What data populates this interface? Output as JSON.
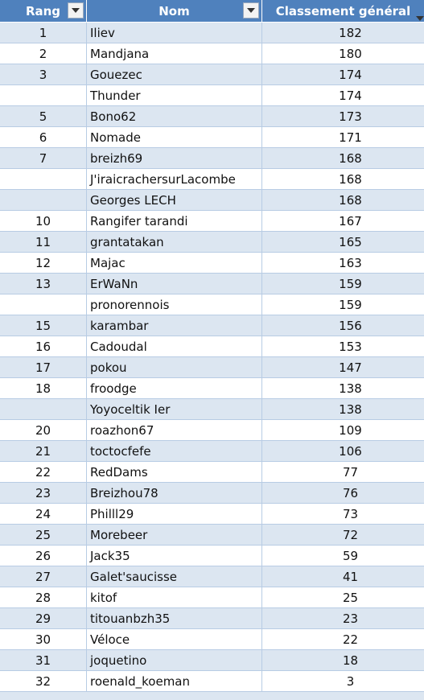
{
  "headers": {
    "rank": "Rang",
    "name": "Nom",
    "score": "Classement général"
  },
  "rows": [
    {
      "rank": "1",
      "name": "Iliev",
      "score": "182"
    },
    {
      "rank": "2",
      "name": "Mandjana",
      "score": "180"
    },
    {
      "rank": "3",
      "name": "Gouezec",
      "score": "174"
    },
    {
      "rank": "",
      "name": "Thunder",
      "score": "174"
    },
    {
      "rank": "5",
      "name": "Bono62",
      "score": "173"
    },
    {
      "rank": "6",
      "name": "Nomade",
      "score": "171"
    },
    {
      "rank": "7",
      "name": "breizh69",
      "score": "168"
    },
    {
      "rank": "",
      "name": "J'iraicrachersurLacombe",
      "score": "168"
    },
    {
      "rank": "",
      "name": "Georges LECH",
      "score": "168"
    },
    {
      "rank": "10",
      "name": "Rangifer tarandi",
      "score": "167"
    },
    {
      "rank": "11",
      "name": "grantatakan",
      "score": "165"
    },
    {
      "rank": "12",
      "name": "Majac",
      "score": "163"
    },
    {
      "rank": "13",
      "name": "ErWaNn",
      "score": "159"
    },
    {
      "rank": "",
      "name": "pronorennois",
      "score": "159"
    },
    {
      "rank": "15",
      "name": "karambar",
      "score": "156"
    },
    {
      "rank": "16",
      "name": "Cadoudal",
      "score": "153"
    },
    {
      "rank": "17",
      "name": "pokou",
      "score": "147"
    },
    {
      "rank": "18",
      "name": "froodge",
      "score": "138"
    },
    {
      "rank": "",
      "name": "Yoyoceltik Ier",
      "score": "138"
    },
    {
      "rank": "20",
      "name": "roazhon67",
      "score": "109"
    },
    {
      "rank": "21",
      "name": "toctocfefe",
      "score": "106"
    },
    {
      "rank": "22",
      "name": "RedDams",
      "score": "77"
    },
    {
      "rank": "23",
      "name": "Breizhou78",
      "score": "76"
    },
    {
      "rank": "24",
      "name": "Philll29",
      "score": "73"
    },
    {
      "rank": "25",
      "name": "Morebeer",
      "score": "72"
    },
    {
      "rank": "26",
      "name": "Jack35",
      "score": "59"
    },
    {
      "rank": "27",
      "name": "Galet'saucisse",
      "score": "41"
    },
    {
      "rank": "28",
      "name": "kitof",
      "score": "25"
    },
    {
      "rank": "29",
      "name": "titouanbzh35",
      "score": "23"
    },
    {
      "rank": "30",
      "name": "Véloce",
      "score": "22"
    },
    {
      "rank": "31",
      "name": "joquetino",
      "score": "18"
    },
    {
      "rank": "32",
      "name": "roenald_koeman",
      "score": "3"
    }
  ],
  "icons": {
    "filter": "dropdown-filter-icon",
    "sort": "sort-descending-icon"
  },
  "colors": {
    "header_bg": "#4f81bd",
    "band": "#dce6f1",
    "grid": "#b8cce4"
  }
}
